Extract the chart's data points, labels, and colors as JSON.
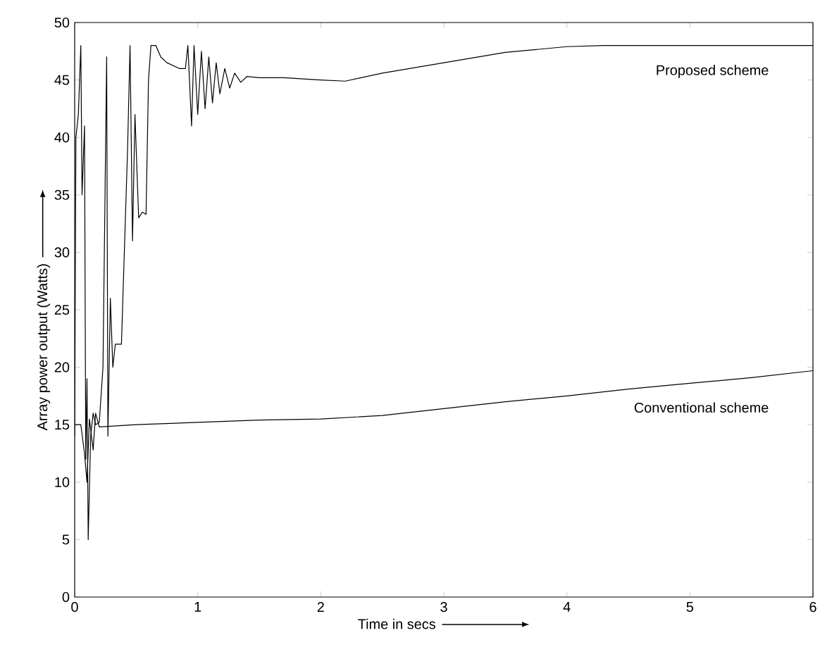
{
  "chart_data": {
    "type": "line",
    "xlabel": "Time in secs",
    "ylabel": "Array power output (Watts)",
    "xlim": [
      0,
      6
    ],
    "ylim": [
      0,
      50
    ],
    "xticks": [
      0,
      1,
      2,
      3,
      4,
      5,
      6
    ],
    "yticks": [
      0,
      5,
      10,
      15,
      20,
      25,
      30,
      35,
      40,
      45,
      50
    ],
    "grid": false,
    "legend": false,
    "marker": "none",
    "line_style": "solid",
    "series": [
      {
        "name": "Proposed scheme",
        "color": "#000000",
        "x": [
          0,
          0.01,
          0.03,
          0.05,
          0.06,
          0.08,
          0.09,
          0.1,
          0.11,
          0.13,
          0.15,
          0.17,
          0.2,
          0.23,
          0.26,
          0.27,
          0.29,
          0.31,
          0.33,
          0.38,
          0.43,
          0.45,
          0.47,
          0.49,
          0.52,
          0.55,
          0.58,
          0.6,
          0.62,
          0.66,
          0.7,
          0.75,
          0.85,
          0.9,
          0.92,
          0.95,
          0.97,
          1.0,
          1.03,
          1.06,
          1.09,
          1.12,
          1.15,
          1.18,
          1.22,
          1.26,
          1.3,
          1.35,
          1.4,
          1.5,
          1.7,
          2.0,
          2.2,
          2.5,
          3.0,
          3.5,
          4.0,
          4.3,
          6
        ],
        "values": [
          14,
          40,
          42,
          48,
          35,
          41,
          12,
          19,
          5,
          14,
          16,
          15,
          15.2,
          20,
          47,
          14,
          26,
          20,
          22,
          22,
          39,
          48,
          31,
          42,
          33,
          33.5,
          33.3,
          45,
          48,
          48,
          47,
          46.5,
          46,
          46,
          48,
          41,
          48,
          42,
          47.5,
          42.5,
          47,
          43,
          46.5,
          43.8,
          46,
          44.3,
          45.6,
          44.8,
          45.3,
          45.2,
          45.2,
          45,
          44.9,
          45.6,
          46.5,
          47.4,
          47.9,
          48,
          48
        ]
      },
      {
        "name": "Conventional scheme",
        "color": "#000000",
        "x": [
          0,
          0.05,
          0.08,
          0.1,
          0.12,
          0.15,
          0.17,
          0.2,
          0.5,
          1,
          1.5,
          2,
          2.5,
          3,
          3.5,
          4,
          4.5,
          5,
          5.5,
          6
        ],
        "values": [
          15,
          15,
          12.5,
          10,
          15.5,
          12.8,
          16,
          14.8,
          15,
          15.2,
          15.4,
          15.5,
          15.8,
          16.4,
          17,
          17.5,
          18.1,
          18.6,
          19.1,
          19.7
        ]
      }
    ]
  }
}
